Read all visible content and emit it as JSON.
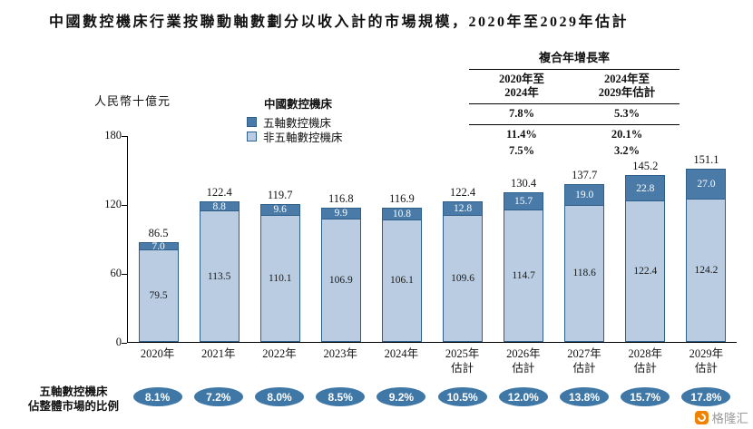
{
  "title": "中國數控機床行業按聯動軸數劃分以收入計的市場規模，2020年至2029年估計",
  "y_axis_label": "人民幣十億元",
  "legend": {
    "title": "中國數控機床",
    "items": [
      {
        "label": "五軸數控機床",
        "color": "#4a7ba8"
      },
      {
        "label": "非五軸數控機床",
        "color": "#b9cce1"
      }
    ]
  },
  "cagr_table": {
    "title": "複合年增長率",
    "columns": [
      {
        "header_line1": "2020年至",
        "header_line2": "2024年",
        "total": "7.8%",
        "five_axis": "11.4%",
        "non_five_axis": "7.5%"
      },
      {
        "header_line1": "2024年至",
        "header_line2": "2029年估計",
        "total": "5.3%",
        "five_axis": "20.1%",
        "non_five_axis": "3.2%"
      }
    ]
  },
  "chart_data": {
    "type": "bar",
    "stacked": true,
    "title": "中國數控機床行業按聯動軸數劃分以收入計的市場規模，2020年至2029年估計",
    "ylabel": "人民幣十億元",
    "ylim": [
      0,
      180
    ],
    "yticks": [
      0,
      60,
      120,
      180
    ],
    "grid": false,
    "legend_position": "top-center",
    "categories": [
      "2020年",
      "2021年",
      "2022年",
      "2023年",
      "2024年",
      "2025年估計",
      "2026年估計",
      "2027年估計",
      "2028年估計",
      "2029年估計"
    ],
    "series": [
      {
        "name": "五軸數控機床",
        "color": "#4a7ba8",
        "text_color": "#ffffff",
        "values": [
          7.0,
          8.8,
          9.6,
          9.9,
          10.8,
          12.8,
          15.7,
          19.0,
          22.8,
          27.0
        ]
      },
      {
        "name": "非五軸數控機床",
        "color": "#b9cce1",
        "text_color": "#1a1a1a",
        "values": [
          79.5,
          113.5,
          110.1,
          106.9,
          106.1,
          109.6,
          114.7,
          118.6,
          122.4,
          124.2
        ]
      }
    ],
    "totals": [
      86.5,
      122.4,
      119.7,
      116.8,
      116.9,
      122.4,
      130.4,
      137.7,
      145.2,
      151.1
    ]
  },
  "bottom_row": {
    "label_line1": "五軸數控機床",
    "label_line2": "佔整體市場的比例",
    "values": [
      "8.1%",
      "7.2%",
      "8.0%",
      "8.5%",
      "9.2%",
      "10.5%",
      "12.0%",
      "13.8%",
      "15.7%",
      "17.8%"
    ],
    "pill_color": "#3f78a6"
  },
  "watermark": {
    "text": "格隆汇",
    "logo_color": "#f08200"
  }
}
